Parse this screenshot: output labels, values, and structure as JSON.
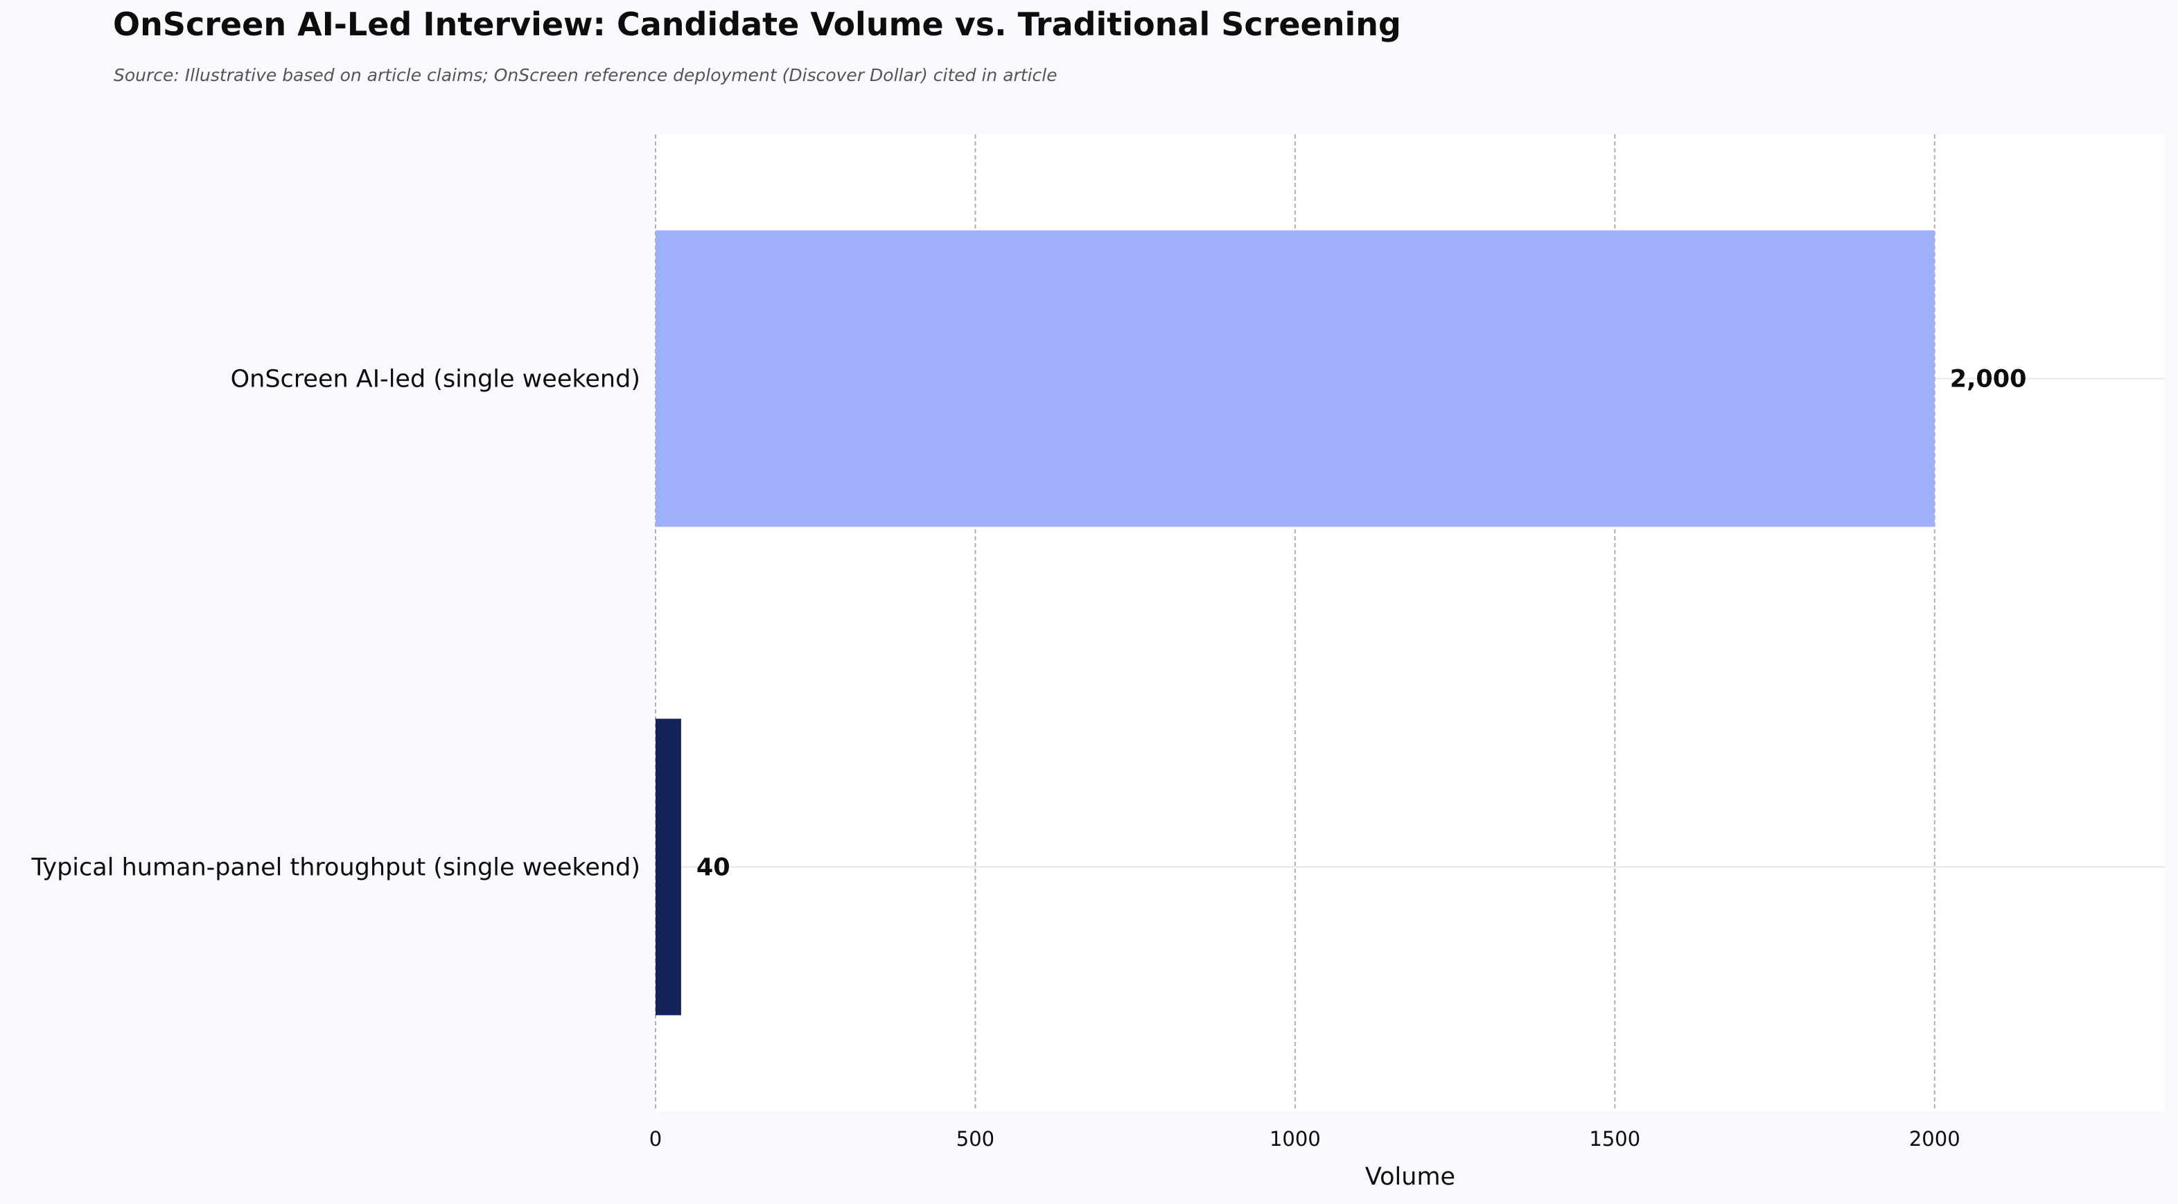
{
  "title": "OnScreen AI-Led Interview: Candidate Volume vs. Traditional Screening",
  "subtitle": "Source: Illustrative based on article claims; OnScreen reference deployment (Discover Dollar) cited in article",
  "chart_data": {
    "type": "bar",
    "orientation": "horizontal",
    "categories": [
      "OnScreen AI-led (single weekend)",
      "Typical human-panel throughput (single weekend)"
    ],
    "values": [
      2000,
      40
    ],
    "value_labels": [
      "2,000",
      "40"
    ],
    "bar_colors": [
      "#9eb0fc",
      "#14235a"
    ],
    "xlabel": "Volume",
    "ylabel": "",
    "xlim": [
      0,
      2360
    ],
    "xticks": [
      0,
      500,
      1000,
      1500,
      2000
    ],
    "xtick_labels": [
      "0",
      "500",
      "1000",
      "1500",
      "2000"
    ],
    "grid": "vertical dashed",
    "legend": "none"
  },
  "colors": {
    "page_background": "#f7f9fc",
    "plot_background": "#ffffff",
    "grid": "#b0b0b0",
    "text": "#0d0d0d",
    "subtitle": "#555555"
  }
}
